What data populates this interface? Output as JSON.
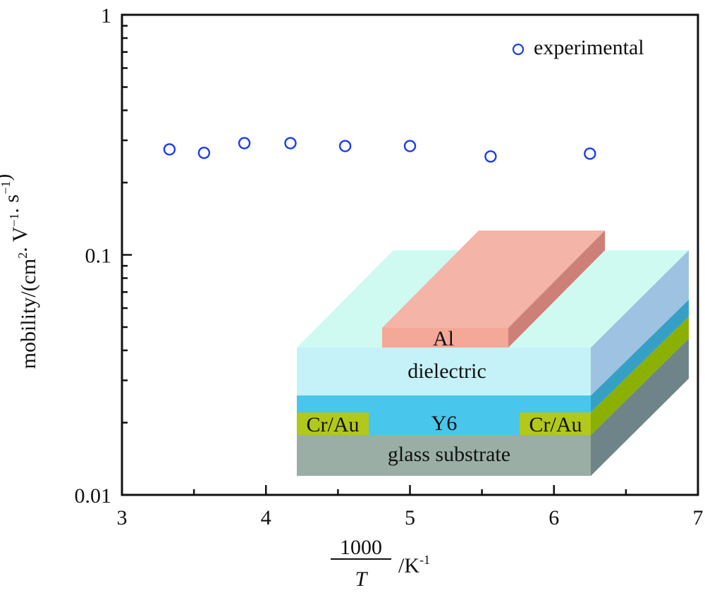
{
  "chart_data": {
    "type": "scatter",
    "title": "",
    "xlabel": {
      "numerator": "1000",
      "denominator": "T",
      "unit": "/K",
      "unit_sup": "-1"
    },
    "ylabel": {
      "parts": [
        {
          "text": "mobility/(cm",
          "sup": "2"
        },
        {
          "text": ". V",
          "sup": "−1"
        },
        {
          "text": ". s",
          "sup": "−1"
        },
        {
          "text": ")",
          "sup": ""
        }
      ]
    },
    "xlim": [
      3,
      7
    ],
    "ylim": [
      0.01,
      1
    ],
    "yscale": "log",
    "grid": false,
    "x_ticks": [
      {
        "value": 3,
        "label": "3"
      },
      {
        "value": 4,
        "label": "4"
      },
      {
        "value": 5,
        "label": "5"
      },
      {
        "value": 6,
        "label": "6"
      },
      {
        "value": 7,
        "label": "7"
      }
    ],
    "x_minor_ticks": [
      3.5,
      4.5,
      5.5,
      6.5
    ],
    "y_ticks": [
      {
        "value": 0.01,
        "label": "0.01"
      },
      {
        "value": 0.1,
        "label": "0.1"
      },
      {
        "value": 1,
        "label": "1"
      }
    ],
    "legend": {
      "placement": "top-right",
      "entries": [
        {
          "label": "experimental",
          "marker": "open-circle",
          "color": "#1a3cf0"
        }
      ]
    },
    "series": [
      {
        "name": "experimental",
        "marker": "open-circle",
        "color": "#1a3cf0",
        "x": [
          3.33,
          3.57,
          3.85,
          4.17,
          4.55,
          5.0,
          5.56,
          6.25
        ],
        "y": [
          0.275,
          0.266,
          0.292,
          0.292,
          0.284,
          0.284,
          0.257,
          0.264
        ]
      }
    ],
    "inset": {
      "description": "device structure schematic",
      "layers": [
        {
          "name": "Al",
          "label": "Al",
          "front": "#f4a898",
          "top": "#f4b4a8",
          "side": "#cd8078"
        },
        {
          "name": "dielectric",
          "label": "dielectric",
          "front": "#c4f2f8",
          "top": "#cffaf2",
          "side": "#9ec2e2"
        },
        {
          "name": "Y6",
          "label": "Y6",
          "front": "#48c6ec",
          "side": "#36a0c4"
        },
        {
          "name": "electrodes",
          "label_left": "Cr/Au",
          "label_right": "Cr/Au",
          "front": "#b2c81a",
          "side": "#8cb000"
        },
        {
          "name": "glass-substrate",
          "label": "glass substrate",
          "front": "#9aaea6",
          "side": "#6e8488"
        }
      ]
    }
  }
}
